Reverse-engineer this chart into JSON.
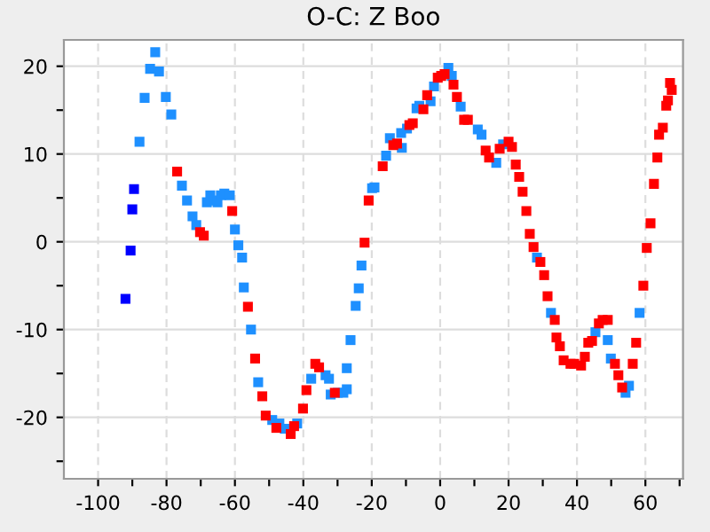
{
  "chart_data": {
    "type": "scatter",
    "title": "O-C: Z Boo",
    "marker": "square",
    "grid": true,
    "legend": false,
    "xlim": [
      -110,
      71
    ],
    "ylim": [
      -27,
      23
    ],
    "xticks": [
      -100,
      {
        "value": -90,
        "label": null
      },
      -80,
      {
        "value": -70,
        "label": null
      },
      -60,
      {
        "value": -50,
        "label": null
      },
      -40,
      {
        "value": -30,
        "label": null
      },
      -20,
      {
        "value": -10,
        "label": null
      },
      0,
      {
        "value": 10,
        "label": null
      },
      20,
      {
        "value": 30,
        "label": null
      },
      40,
      {
        "value": 50,
        "label": null
      },
      60,
      {
        "value": 70,
        "label": null
      }
    ],
    "yticks": [
      {
        "value": -25,
        "label": null
      },
      -20,
      {
        "value": -15,
        "label": null
      },
      -10,
      {
        "value": -5,
        "label": null
      },
      0,
      {
        "value": 5,
        "label": null
      },
      10,
      {
        "value": 15,
        "label": null
      },
      20
    ],
    "series": [
      {
        "color": "#0000ff",
        "x": [
          -92,
          -90.5,
          -90,
          -89.5
        ],
        "values": [
          -6.5,
          -1,
          3.7,
          6
        ]
      },
      {
        "color": "#1e90ff",
        "x": [
          -87.9,
          -86.4,
          -84.8,
          -83.3,
          -82.2,
          -80.2,
          -78.6,
          -75.5,
          -74,
          -72.4,
          -71.3,
          -68.2,
          -67.2,
          -66.2,
          -65.1,
          -64.1,
          -63.1,
          -61.5,
          -60,
          -59,
          -57.9,
          -57.4,
          -55.3,
          -53.2,
          -49.1,
          -47,
          -45.4,
          -41.8,
          -37.7,
          -33.5,
          -32.5,
          -32,
          -29.9,
          -28.3,
          -27.3,
          -27.3,
          -26.2,
          -24.7,
          -23.8,
          -23,
          -19.9,
          -19.2,
          -15.8,
          -14.7,
          -11.2,
          -11.4,
          -9.7,
          -6.9,
          -6.1,
          -2.8,
          -1.8,
          2.4,
          3.4,
          6,
          11,
          12.1,
          16.4,
          18.4,
          28.3,
          32.4,
          45.4,
          49,
          49.9,
          54.2,
          55.2,
          58.3
        ],
        "values": [
          11.4,
          16.4,
          19.7,
          21.6,
          19.4,
          16.5,
          14.5,
          6.4,
          4.7,
          2.9,
          1.9,
          4.5,
          5.3,
          4.7,
          4.5,
          5.3,
          5.5,
          5.3,
          1.4,
          -0.4,
          -1.8,
          -5.2,
          -10,
          -16,
          -20.3,
          -20.7,
          -21.3,
          -20.7,
          -15.6,
          -15.2,
          -15.6,
          -17.4,
          -17.2,
          -17.2,
          -16.8,
          -14.4,
          -11.2,
          -7.3,
          -5.3,
          -2.7,
          6.1,
          6.2,
          9.8,
          11.8,
          10.7,
          12.4,
          12.9,
          15.2,
          15.5,
          16,
          17.7,
          19.8,
          18.9,
          15.4,
          12.8,
          12.2,
          9,
          11.1,
          -1.8,
          -8.1,
          -10.3,
          -11.2,
          -13.3,
          -17.2,
          -16.4,
          -8.1
        ]
      },
      {
        "color": "#ff0000",
        "x": [
          -76.9,
          -70.2,
          -69.1,
          -60.8,
          -56.2,
          -54.1,
          -52,
          -51,
          -47.9,
          -43.7,
          -42.7,
          -40.1,
          -39.1,
          -36.5,
          -35.4,
          -30.8,
          -22.1,
          -20.9,
          -16.8,
          -13.7,
          -12.6,
          -9,
          -8,
          -4.9,
          -3.8,
          -0.7,
          0.3,
          1.3,
          3.9,
          4.9,
          7,
          8.1,
          13.3,
          14.3,
          17.4,
          20,
          21,
          22.1,
          23.1,
          24.1,
          25.2,
          26.2,
          27.3,
          29.3,
          30.4,
          31.4,
          33.5,
          34,
          35,
          36.1,
          38.1,
          39.2,
          41.2,
          42.3,
          43.3,
          44.4,
          46.4,
          47.5,
          49,
          51.1,
          52.1,
          53.2,
          56.3,
          57.3,
          59.4,
          60.4,
          61.5,
          62.5,
          63.5,
          64,
          65.1,
          66.1,
          66.6,
          67.2,
          67.7
        ],
        "values": [
          8,
          1.1,
          0.7,
          3.5,
          -7.4,
          -13.3,
          -17.6,
          -19.8,
          -21.2,
          -21.9,
          -21,
          -19,
          -16.9,
          -13.9,
          -14.3,
          -17.2,
          -0.1,
          4.7,
          8.6,
          11,
          11.2,
          13.3,
          13.5,
          15.1,
          16.7,
          18.7,
          18.9,
          19.1,
          17.9,
          16.5,
          13.9,
          13.9,
          10.4,
          9.6,
          10.6,
          11.4,
          10.8,
          8.8,
          7.4,
          5.7,
          3.5,
          0.9,
          -0.6,
          -2.3,
          -3.8,
          -6.2,
          -8.9,
          -10.9,
          -11.9,
          -13.5,
          -13.9,
          -13.9,
          -14.1,
          -13.1,
          -11.5,
          -11.3,
          -9.3,
          -8.9,
          -8.9,
          -13.9,
          -15.2,
          -16.6,
          -13.9,
          -11.5,
          -5,
          -0.7,
          2.1,
          6.6,
          9.6,
          12.2,
          13,
          15.5,
          16.1,
          18.1,
          17.3
        ]
      }
    ]
  }
}
